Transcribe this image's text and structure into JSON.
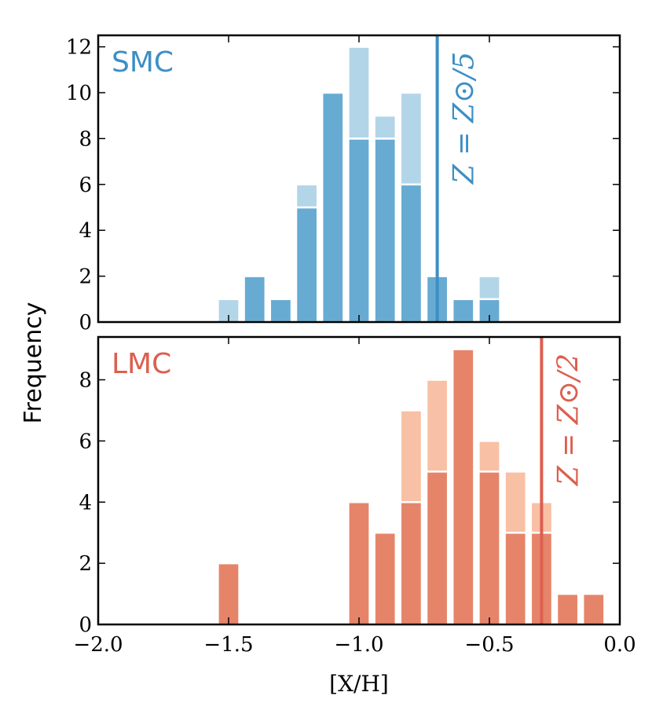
{
  "chart_data": {
    "type": "bar",
    "layout": "stacked histogram, two vertically stacked panels sharing x-axis",
    "xlabel": "[X/H]",
    "ylabel": "Frequency",
    "xlim": [
      -2.0,
      0.0
    ],
    "xticks": [
      -2.0,
      -1.5,
      -1.0,
      -0.5,
      0.0
    ],
    "xtick_labels": [
      "−2.0",
      "−1.5",
      "−1.0",
      "−0.5",
      "0.0"
    ],
    "bin_width": 0.1,
    "panels": [
      {
        "label": "SMC",
        "color_dark": "#67abd2",
        "color_light": "#b3d5e8",
        "label_color": "#3d8fc4",
        "ylim": [
          0,
          12.5
        ],
        "yticks": [
          0,
          2,
          4,
          6,
          8,
          10,
          12
        ],
        "ref_line": {
          "x": -0.7,
          "label": "Z = Z⊙/5",
          "color": "#3d8fc4"
        },
        "bin_centers": [
          -1.5,
          -1.4,
          -1.3,
          -1.2,
          -1.1,
          -1.0,
          -0.9,
          -0.8,
          -0.7,
          -0.6,
          -0.5,
          -0.4
        ],
        "series": [
          {
            "name": "dark",
            "values": [
              0,
              2,
              1,
              5,
              10,
              8,
              8,
              6,
              2,
              1,
              1,
              0
            ]
          },
          {
            "name": "light",
            "values": [
              1,
              0,
              0,
              1,
              0,
              4,
              1,
              4,
              0,
              0,
              1,
              0
            ]
          }
        ]
      },
      {
        "label": "LMC",
        "color_dark": "#e6846a",
        "color_light": "#f8c0a5",
        "label_color": "#dc5f4f",
        "ylim": [
          0,
          9.4
        ],
        "yticks": [
          0,
          2,
          4,
          6,
          8
        ],
        "ref_line": {
          "x": -0.3,
          "label": "Z = Z⊙/2",
          "color": "#dc5f4f"
        },
        "bin_centers": [
          -1.5,
          -1.0,
          -0.9,
          -0.8,
          -0.7,
          -0.6,
          -0.5,
          -0.4,
          -0.3,
          -0.2,
          -0.1
        ],
        "series": [
          {
            "name": "dark",
            "values": [
              2,
              4,
              3,
              4,
              5,
              9,
              5,
              3,
              3,
              1,
              1
            ]
          },
          {
            "name": "light",
            "values": [
              0,
              0,
              0,
              3,
              3,
              0,
              1,
              2,
              1,
              0,
              0
            ]
          }
        ]
      }
    ]
  }
}
